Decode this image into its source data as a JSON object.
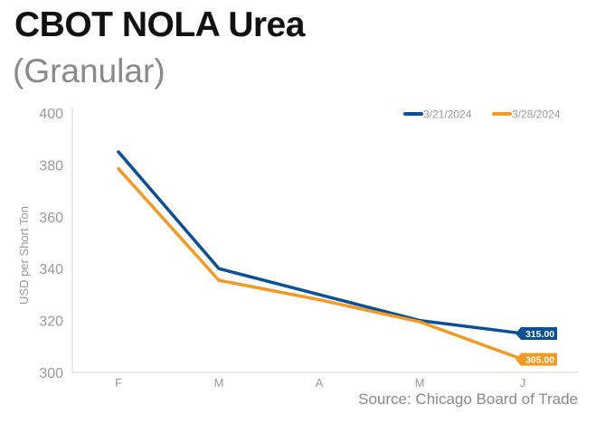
{
  "header": {
    "title": "CBOT NOLA Urea",
    "subtitle": "(Granular)"
  },
  "footer": {
    "source": "Source: Chicago Board of Trade"
  },
  "colors": {
    "series_1": "#0b4f96",
    "series_2": "#f39a24",
    "axis_text": "#9a9a9a",
    "title": "#111111"
  },
  "chart_data": {
    "type": "line",
    "title": "CBOT NOLA Urea",
    "subtitle": "(Granular)",
    "xlabel": "",
    "ylabel": "USD per Short Ton",
    "categories": [
      "F",
      "M",
      "A",
      "M",
      "J"
    ],
    "ylim": [
      300,
      400
    ],
    "yticks": [
      300,
      320,
      340,
      360,
      380,
      400
    ],
    "grid": false,
    "legend_position": "top-right",
    "series": [
      {
        "name": "3/21/2024",
        "color": "#0b4f96",
        "values": [
          385,
          340,
          330,
          320,
          315
        ],
        "end_label": "315.00"
      },
      {
        "name": "3/28/2024",
        "color": "#f39a24",
        "values": [
          378.5,
          335.5,
          328,
          319.5,
          305
        ],
        "end_label": "305.00"
      }
    ]
  }
}
